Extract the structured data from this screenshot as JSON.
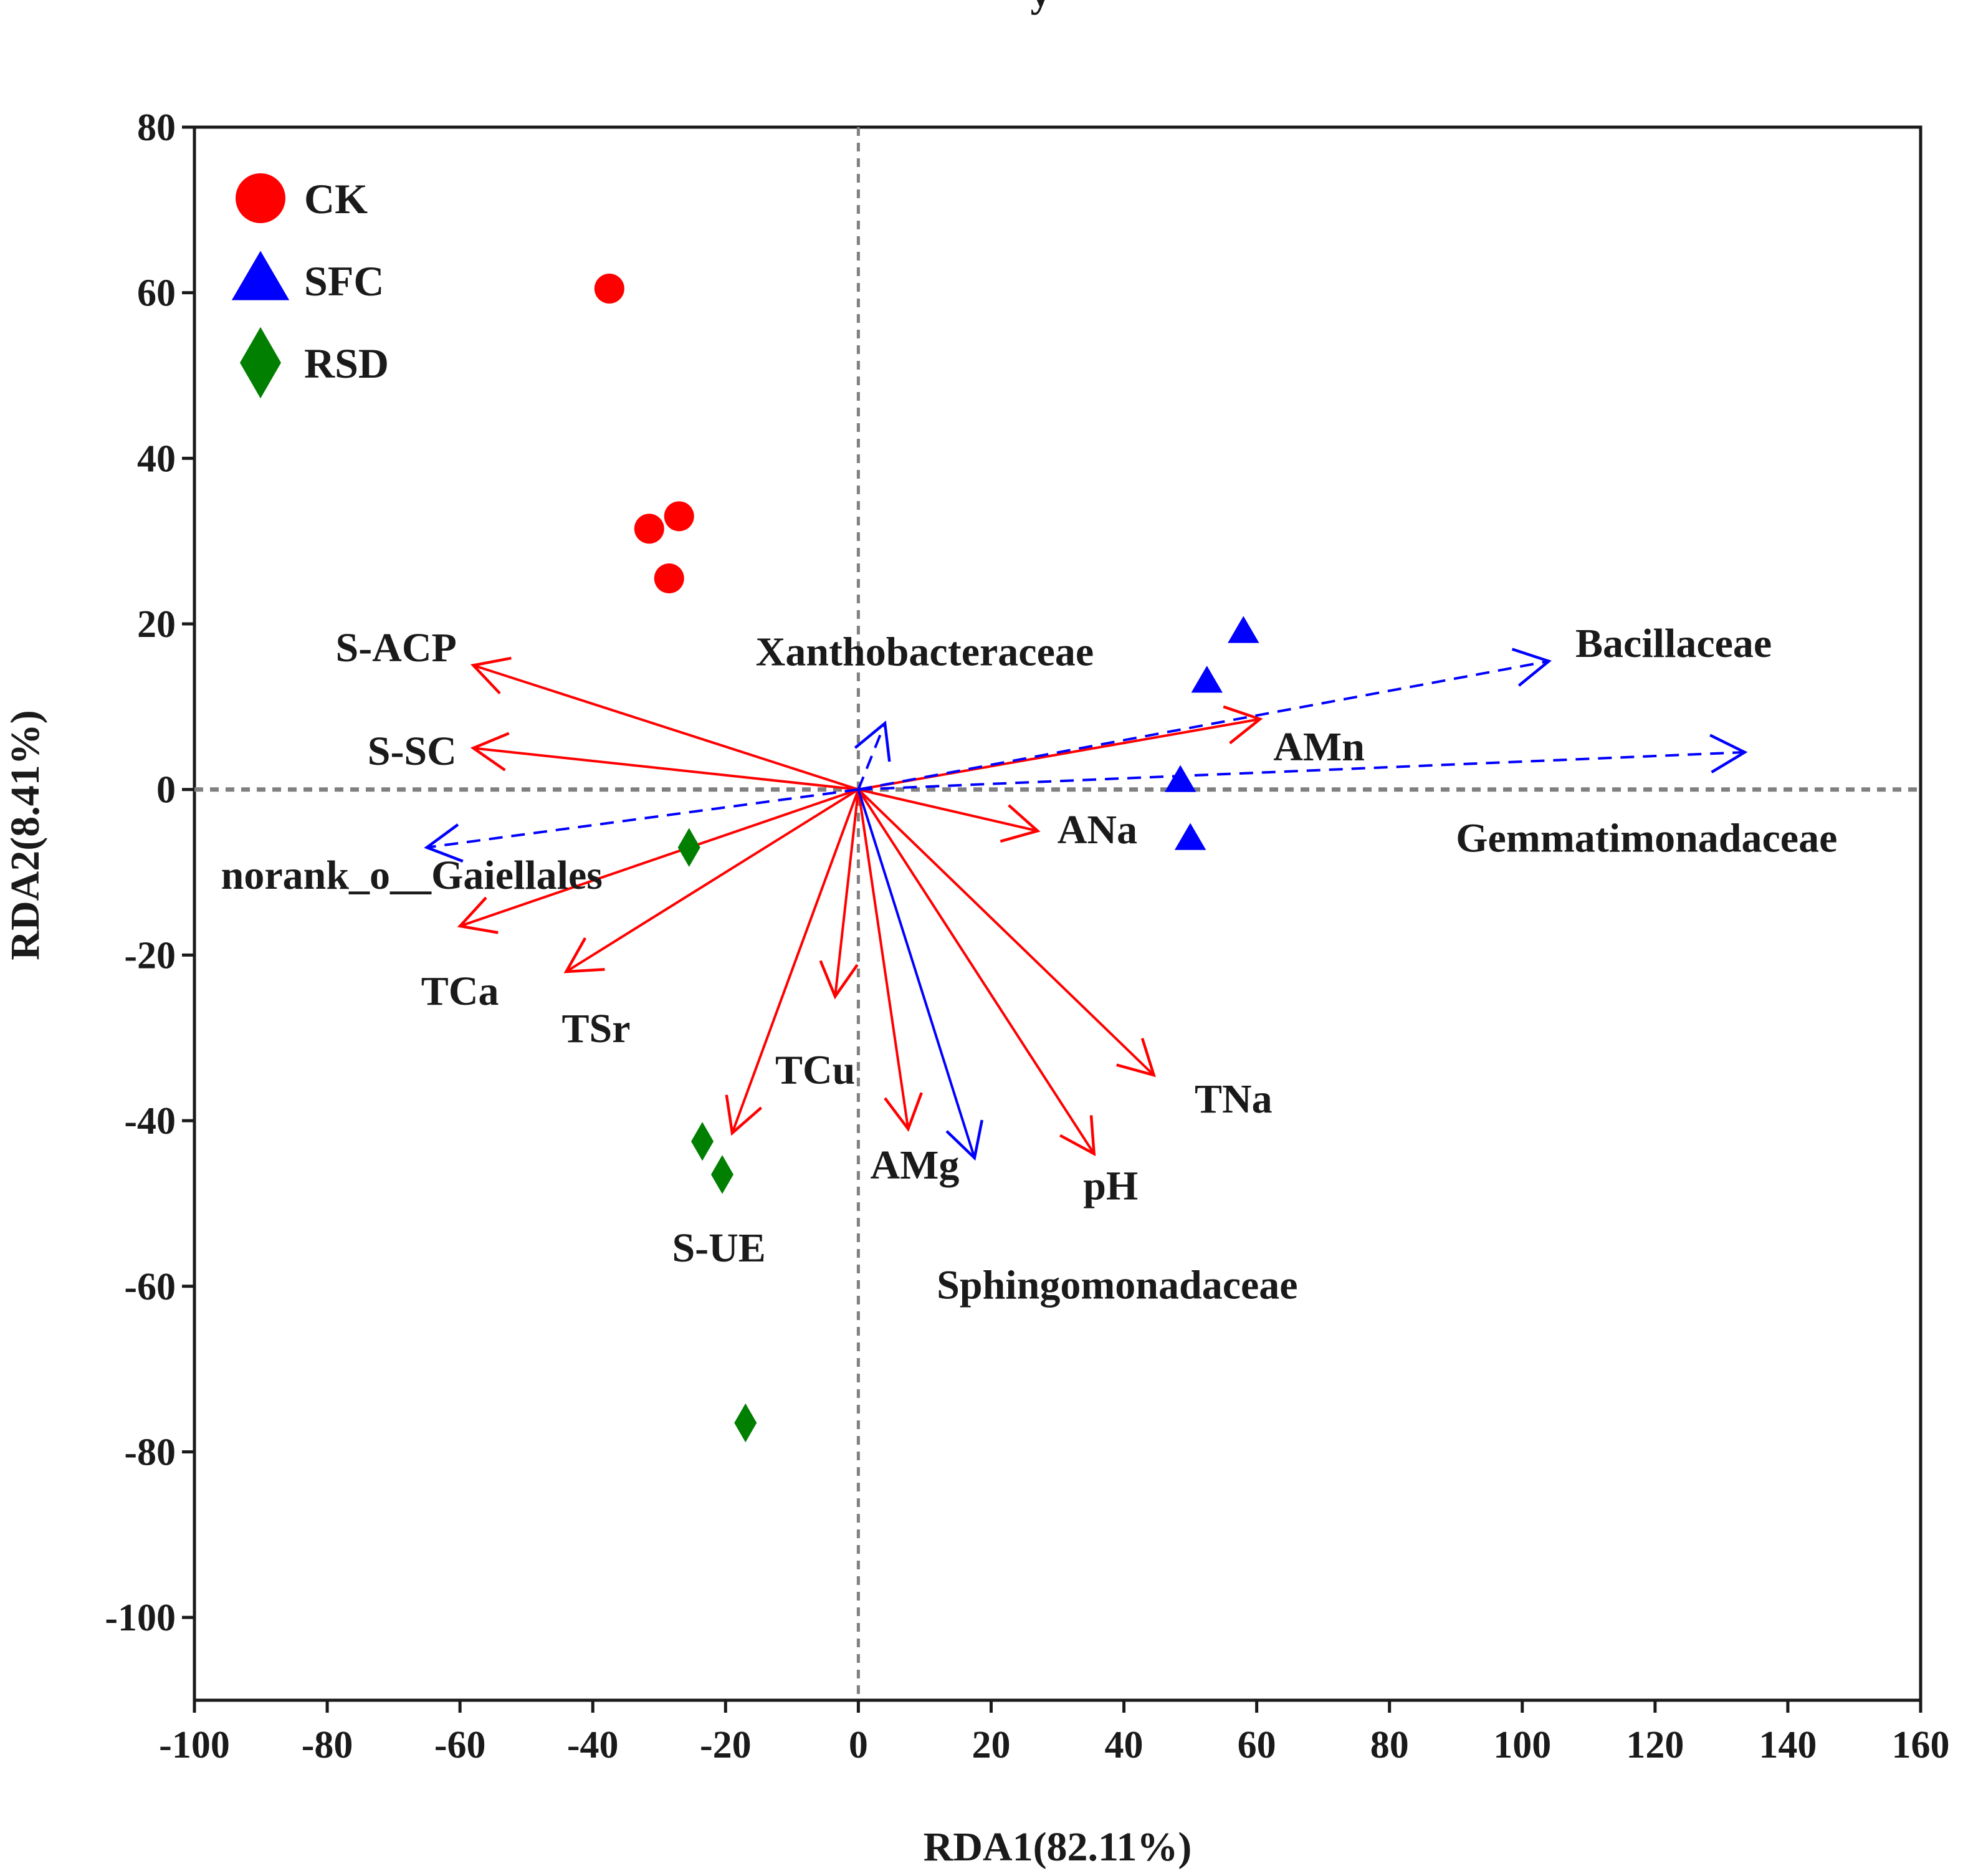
{
  "chart_data": {
    "type": "scatter",
    "subtitle": "y",
    "xlabel": "RDA1(82.11%)",
    "ylabel": "RDA2(8.41%)",
    "xlim": [
      -100,
      160
    ],
    "ylim": [
      -110,
      80
    ],
    "xticks": [
      -100,
      -80,
      -60,
      -40,
      -20,
      0,
      20,
      40,
      60,
      80,
      100,
      120,
      140,
      160
    ],
    "yticks": [
      80,
      60,
      40,
      20,
      0,
      -20,
      -40,
      -60,
      -80,
      -100
    ],
    "reference_lines": {
      "x": 0,
      "y": 0,
      "style": "dashed"
    },
    "legend_position": "top-left",
    "series": [
      {
        "name": "CK",
        "marker": "circle",
        "color": "#ff0000",
        "points": [
          [
            -37.5,
            60.5
          ],
          [
            -27,
            33
          ],
          [
            -31.5,
            31.5
          ],
          [
            -28.5,
            25.5
          ]
        ]
      },
      {
        "name": "SFC",
        "marker": "triangle",
        "color": "#0000ff",
        "points": [
          [
            58,
            19
          ],
          [
            52.5,
            13
          ],
          [
            48.5,
            1
          ],
          [
            50,
            -6
          ]
        ]
      },
      {
        "name": "RSD",
        "marker": "diamond",
        "color": "#007f00",
        "points": [
          [
            -25.5,
            -7
          ],
          [
            -23.5,
            -42.5
          ],
          [
            -20.5,
            -46.5
          ],
          [
            -17,
            -76.5
          ]
        ]
      }
    ],
    "env_vectors": [
      {
        "name": "S-ACP",
        "end": [
          -58,
          15
        ],
        "color": "#ff0000",
        "style": "solid"
      },
      {
        "name": "S-SC",
        "end": [
          -58,
          5
        ],
        "color": "#ff0000",
        "style": "solid"
      },
      {
        "name": "TCa",
        "end": [
          -60,
          -16.5
        ],
        "color": "#ff0000",
        "style": "solid"
      },
      {
        "name": "TSr",
        "end": [
          -44,
          -22
        ],
        "color": "#ff0000",
        "style": "solid"
      },
      {
        "name": "S-UE",
        "end": [
          -19,
          -41.5
        ],
        "color": "#ff0000",
        "style": "solid"
      },
      {
        "name": "TCu",
        "end": [
          -3.5,
          -25
        ],
        "color": "#ff0000",
        "style": "solid"
      },
      {
        "name": "AMg",
        "end": [
          7.5,
          -41
        ],
        "color": "#ff0000",
        "style": "solid"
      },
      {
        "name": "pH",
        "end": [
          35.5,
          -44
        ],
        "color": "#ff0000",
        "style": "solid"
      },
      {
        "name": "TNa",
        "end": [
          44.5,
          -34.5
        ],
        "color": "#ff0000",
        "style": "solid"
      },
      {
        "name": "ANa",
        "end": [
          27,
          -5
        ],
        "color": "#ff0000",
        "style": "solid"
      },
      {
        "name": "AMn",
        "end": [
          60.5,
          8.5
        ],
        "color": "#ff0000",
        "style": "solid"
      }
    ],
    "species_vectors": [
      {
        "name": "Bacillaceae",
        "end": [
          104,
          15.5
        ],
        "color": "#0000ff",
        "style": "dashed"
      },
      {
        "name": "Gemmatimonadaceae",
        "end": [
          133.5,
          4.5
        ],
        "color": "#0000ff",
        "style": "dashed"
      },
      {
        "name": "Xanthobacteraceae",
        "end": [
          4,
          8
        ],
        "color": "#0000ff",
        "style": "dashed"
      },
      {
        "name": "norank_o__Gaiellales",
        "end": [
          -65,
          -7
        ],
        "color": "#0000ff",
        "style": "dashed"
      },
      {
        "name": "Sphingomonadaceae",
        "end": [
          17.5,
          -44.5
        ],
        "color": "#0000ff",
        "style": "solid"
      }
    ],
    "vector_labels": [
      {
        "name": "S-ACP",
        "pos": [
          -60.5,
          15.5
        ],
        "anchor": "end"
      },
      {
        "name": "S-SC",
        "pos": [
          -60.5,
          3
        ],
        "anchor": "end"
      },
      {
        "name": "TCa",
        "pos": [
          -60,
          -26
        ],
        "anchor": "middle"
      },
      {
        "name": "TSr",
        "pos": [
          -39.5,
          -30.5
        ],
        "anchor": "middle"
      },
      {
        "name": "S-UE",
        "pos": [
          -21,
          -57
        ],
        "anchor": "middle"
      },
      {
        "name": "TCu",
        "pos": [
          -6.5,
          -35.5
        ],
        "anchor": "middle"
      },
      {
        "name": "AMg",
        "pos": [
          8.5,
          -47
        ],
        "anchor": "middle"
      },
      {
        "name": "pH",
        "pos": [
          38,
          -49.5
        ],
        "anchor": "middle"
      },
      {
        "name": "TNa",
        "pos": [
          56.5,
          -39
        ],
        "anchor": "middle"
      },
      {
        "name": "ANa",
        "pos": [
          36,
          -6.5
        ],
        "anchor": "middle"
      },
      {
        "name": "AMn",
        "pos": [
          62.5,
          3.5
        ],
        "anchor": "start"
      },
      {
        "name": "Bacillaceae",
        "pos": [
          108,
          16
        ],
        "anchor": "start"
      },
      {
        "name": "Gemmatimonadaceae",
        "pos": [
          90,
          -7.5
        ],
        "anchor": "start"
      },
      {
        "name": "Xanthobacteraceae",
        "pos": [
          10,
          15
        ],
        "anchor": "middle"
      },
      {
        "name": "norank_o__Gaiellales",
        "pos": [
          -96,
          -12
        ],
        "anchor": "start"
      },
      {
        "name": "Sphingomonadaceae",
        "pos": [
          39,
          -61.5
        ],
        "anchor": "middle"
      }
    ]
  }
}
